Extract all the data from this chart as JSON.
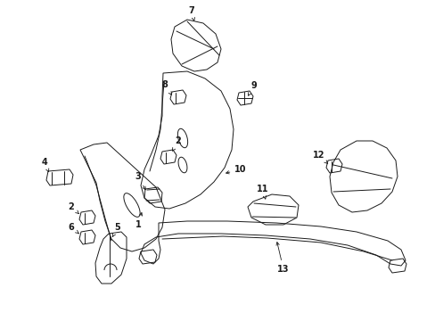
{
  "bg_color": "#ffffff",
  "line_color": "#1a1a1a",
  "lw": 0.7,
  "fig_width": 4.89,
  "fig_height": 3.6,
  "dpi": 100,
  "xlim": [
    0,
    489
  ],
  "ylim": [
    0,
    360
  ]
}
